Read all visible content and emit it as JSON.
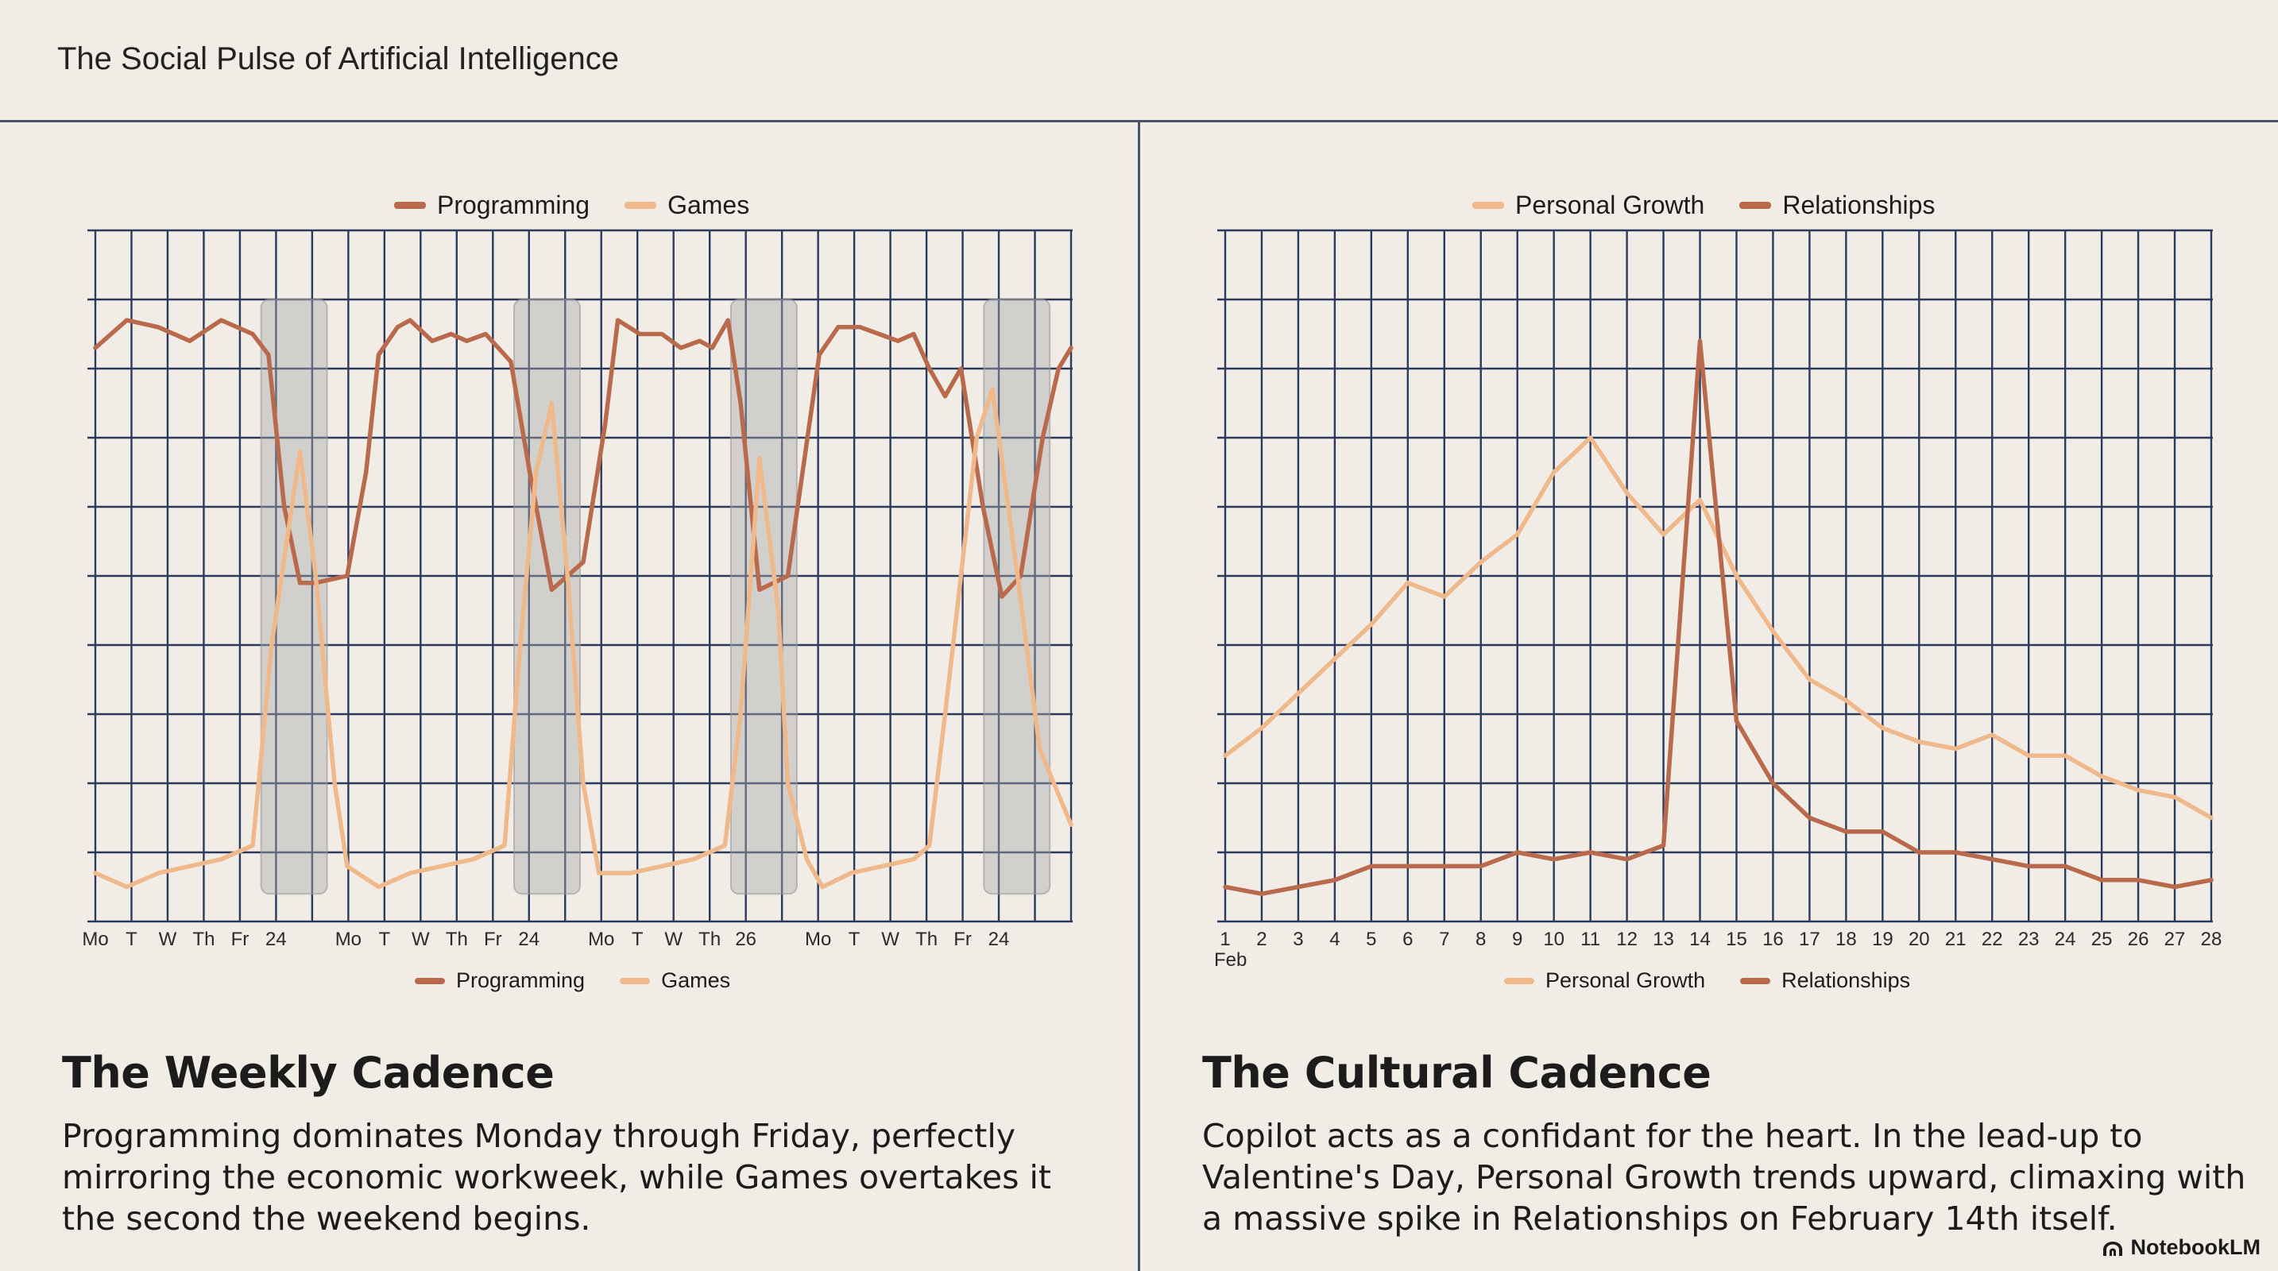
{
  "page": {
    "title": "The Social Pulse of Artificial Intelligence",
    "brand": "NotebookLM"
  },
  "colors": {
    "dark_series": "#b96a4c",
    "light_series": "#efb98c",
    "grid": "#2b3a5c",
    "weekend_band": "#a7a9ab"
  },
  "weekly": {
    "heading": "The Weekly Cadence",
    "body": "Programming dominates Monday through Friday, perfectly mirroring the economic workweek, while Games overtakes it the second the weekend begins."
  },
  "cultural": {
    "heading": "The Cultural Cadence",
    "body": "Copilot acts as a confidant for the heart. In the lead-up to Valentine's Day, Personal Growth trends upward, climaxing with a massive spike in Relationships on February 14th itself."
  },
  "chart_data": [
    {
      "type": "line",
      "legend_placement": "top and bottom",
      "grid": true,
      "weekend_bands": [
        [
          4.5,
          6.5
        ],
        [
          11.5,
          13.5
        ],
        [
          17.5,
          19.5
        ],
        [
          24.5,
          26.5
        ]
      ],
      "x_tick_labels": [
        "Mo",
        "T",
        "W",
        "Th",
        "Fr",
        "24",
        "",
        "Mo",
        "T",
        "W",
        "Th",
        "Fr",
        "24",
        "",
        "Mo",
        "T",
        "W",
        "Th",
        "26",
        "",
        "Mo",
        "T",
        "W",
        "Th",
        "Fr",
        "24",
        ""
      ],
      "series": [
        {
          "name": "Programming",
          "color": "dark",
          "points": [
            [
              0,
              83
            ],
            [
              1,
              87
            ],
            [
              2,
              86
            ],
            [
              3,
              84
            ],
            [
              4,
              87
            ],
            [
              5,
              85
            ],
            [
              5.5,
              82
            ],
            [
              6,
              60
            ],
            [
              6.5,
              49
            ],
            [
              7,
              49
            ],
            [
              8,
              50
            ],
            [
              8.6,
              65
            ],
            [
              9,
              82
            ],
            [
              9.6,
              86
            ],
            [
              10,
              87
            ],
            [
              10.7,
              84
            ],
            [
              11.3,
              85
            ],
            [
              11.8,
              84
            ],
            [
              12.4,
              85
            ],
            [
              13.2,
              81
            ],
            [
              13.8,
              65
            ],
            [
              14.5,
              48
            ],
            [
              15.5,
              52
            ],
            [
              16.2,
              72
            ],
            [
              16.6,
              87
            ],
            [
              17.3,
              85
            ],
            [
              18,
              85
            ],
            [
              18.6,
              83
            ],
            [
              19.2,
              84
            ],
            [
              19.6,
              83
            ],
            [
              20.1,
              87
            ],
            [
              20.5,
              75
            ],
            [
              21.1,
              48
            ],
            [
              22,
              50
            ],
            [
              23,
              82
            ],
            [
              23.6,
              86
            ],
            [
              24.3,
              86
            ],
            [
              24.9,
              85
            ],
            [
              25.5,
              84
            ],
            [
              26,
              85
            ],
            [
              26.5,
              80
            ],
            [
              27,
              76
            ],
            [
              27.5,
              80
            ],
            [
              28.2,
              60
            ],
            [
              28.8,
              47
            ],
            [
              29.4,
              50
            ],
            [
              30.1,
              70
            ],
            [
              30.6,
              80
            ],
            [
              31,
              83
            ]
          ]
        },
        {
          "name": "Games",
          "color": "light",
          "points": [
            [
              0,
              7
            ],
            [
              1,
              5
            ],
            [
              2,
              7
            ],
            [
              3,
              8
            ],
            [
              4,
              9
            ],
            [
              5,
              11
            ],
            [
              5.6,
              40
            ],
            [
              6.5,
              68
            ],
            [
              7,
              50
            ],
            [
              7.6,
              20
            ],
            [
              8,
              8
            ],
            [
              9,
              5
            ],
            [
              10,
              7
            ],
            [
              11,
              8
            ],
            [
              12,
              9
            ],
            [
              13,
              11
            ],
            [
              13.5,
              40
            ],
            [
              14,
              65
            ],
            [
              14.5,
              75
            ],
            [
              15,
              50
            ],
            [
              15.5,
              20
            ],
            [
              16,
              7
            ],
            [
              17,
              7
            ],
            [
              18,
              8
            ],
            [
              19,
              9
            ],
            [
              20,
              11
            ],
            [
              20.5,
              30
            ],
            [
              21.1,
              67
            ],
            [
              21.7,
              45
            ],
            [
              22,
              20
            ],
            [
              22.6,
              9
            ],
            [
              23.1,
              5
            ],
            [
              24,
              7
            ],
            [
              25,
              8
            ],
            [
              26,
              9
            ],
            [
              26.5,
              11
            ],
            [
              27,
              30
            ],
            [
              27.5,
              50
            ],
            [
              28,
              70
            ],
            [
              28.5,
              77
            ],
            [
              29.3,
              50
            ],
            [
              30,
              25
            ],
            [
              31,
              14
            ]
          ]
        }
      ]
    },
    {
      "type": "line",
      "legend_placement": "top and bottom",
      "grid": true,
      "x": [
        1,
        2,
        3,
        4,
        5,
        6,
        7,
        8,
        9,
        10,
        11,
        12,
        13,
        14,
        15,
        16,
        17,
        18,
        19,
        20,
        21,
        22,
        23,
        24,
        25,
        26,
        27,
        28
      ],
      "x_tick_labels": [
        "1",
        "2",
        "3",
        "4",
        "5",
        "6",
        "7",
        "8",
        "9",
        "10",
        "11",
        "12",
        "13",
        "14",
        "15",
        "16",
        "17",
        "18",
        "19",
        "20",
        "21",
        "22",
        "23",
        "24",
        "25",
        "26",
        "27",
        "28"
      ],
      "x_sub_label": "Feb",
      "series": [
        {
          "name": "Personal Growth",
          "color": "light",
          "values": [
            24,
            28,
            33,
            38,
            43,
            49,
            47,
            52,
            56,
            65,
            70,
            62,
            56,
            61,
            50,
            42,
            35,
            32,
            28,
            26,
            25,
            27,
            24,
            24,
            21,
            19,
            18,
            15
          ]
        },
        {
          "name": "Relationships",
          "color": "dark",
          "values": [
            5,
            4,
            5,
            6,
            8,
            8,
            8,
            8,
            10,
            9,
            10,
            9,
            11,
            84,
            29,
            20,
            15,
            13,
            13,
            10,
            10,
            9,
            8,
            8,
            6,
            6,
            5,
            6
          ]
        }
      ]
    }
  ]
}
